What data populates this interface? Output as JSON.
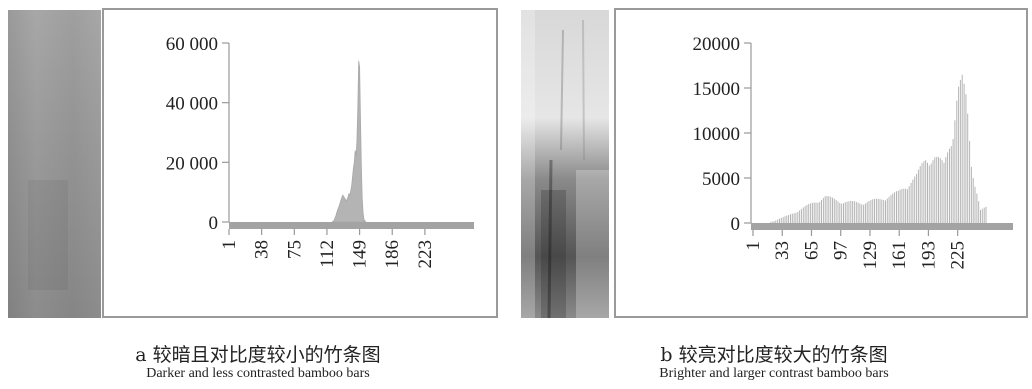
{
  "chart_data": [
    {
      "type": "area",
      "panel_label": "a",
      "caption_zh": "较暗且对比度较小的竹条图",
      "caption_en": "Darker and less contrasted bamboo bars",
      "xlim": [
        1,
        256
      ],
      "ylim": [
        0,
        60000
      ],
      "x_ticks": [
        1,
        38,
        75,
        112,
        149,
        186,
        223
      ],
      "x_tick_labels": [
        "1",
        "38",
        "75",
        "112",
        "149",
        "186",
        "223"
      ],
      "y_ticks": [
        0,
        20000,
        40000,
        60000
      ],
      "y_tick_labels": [
        "0",
        "20 000",
        "40 000",
        "60 000"
      ],
      "grid": false,
      "color": "#b4b4b4",
      "series": [
        {
          "x": [
            118,
            120,
            122,
            124,
            126,
            128,
            130,
            132,
            134,
            136,
            137,
            138,
            140,
            141,
            142,
            143,
            144,
            145,
            146,
            147,
            148,
            149,
            150,
            151,
            152,
            153,
            154,
            156
          ],
          "values": [
            0,
            500,
            2000,
            4000,
            5500,
            7500,
            9000,
            8000,
            7000,
            8500,
            9500,
            9000,
            12000,
            15000,
            18000,
            20000,
            24000,
            22000,
            27000,
            38000,
            54000,
            52000,
            34000,
            18000,
            8000,
            3000,
            800,
            0
          ]
        }
      ]
    },
    {
      "type": "bar",
      "panel_label": "b",
      "caption_zh": "较亮对比度较大的竹条图",
      "caption_en": "Brighter and larger contrast bamboo bars",
      "xlim": [
        1,
        256
      ],
      "ylim": [
        0,
        20000
      ],
      "x_ticks": [
        1,
        33,
        65,
        97,
        129,
        161,
        193,
        225
      ],
      "x_tick_labels": [
        "1",
        "33",
        "65",
        "97",
        "129",
        "161",
        "193",
        "225"
      ],
      "y_ticks": [
        0,
        5000,
        10000,
        15000,
        20000
      ],
      "y_tick_labels": [
        "0",
        "5000",
        "10000",
        "15000",
        "20000"
      ],
      "grid": false,
      "color": "#b4b4b4",
      "series": [
        {
          "x": [
            20,
            40,
            60,
            80,
            100,
            120,
            140,
            160,
            180,
            190,
            200,
            210,
            220,
            225,
            230,
            235,
            240,
            250,
            256
          ],
          "values": [
            100,
            900,
            2000,
            3100,
            2500,
            2400,
            2800,
            3600,
            5500,
            7600,
            7800,
            6800,
            11000,
            15500,
            16500,
            14000,
            7000,
            1500,
            1800
          ]
        }
      ]
    }
  ]
}
